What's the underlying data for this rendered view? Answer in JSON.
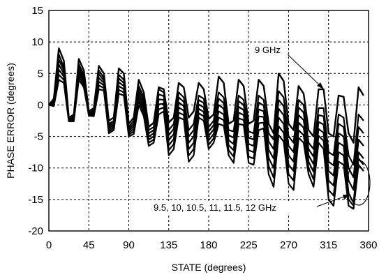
{
  "chart_data": {
    "type": "line",
    "title": "",
    "xlabel": "STATE (degrees)",
    "ylabel": "PHASE ERROR  (degrees)",
    "xlim": [
      0,
      360
    ],
    "ylim": [
      -20,
      15
    ],
    "xticks": [
      "0",
      "45",
      "90",
      "135",
      "180",
      "225",
      "270",
      "315",
      "360"
    ],
    "yticks": [
      "15",
      "10",
      "5",
      "0",
      "-5",
      "-10",
      "-15",
      "-20"
    ],
    "grid": true,
    "x": [
      0,
      5.6,
      11.25,
      16.9,
      22.5,
      28.1,
      33.75,
      39.4,
      45,
      50.6,
      56.25,
      61.9,
      67.5,
      73.1,
      78.75,
      84.4,
      90,
      95.6,
      101.25,
      106.9,
      112.5,
      118.1,
      123.75,
      129.4,
      135,
      140.6,
      146.25,
      151.9,
      157.5,
      163.1,
      168.75,
      174.4,
      180,
      185.6,
      191.25,
      196.9,
      202.5,
      208.1,
      213.75,
      219.4,
      225,
      230.6,
      236.25,
      241.9,
      247.5,
      253.1,
      258.75,
      264.4,
      270,
      275.6,
      281.25,
      286.9,
      292.5,
      298.1,
      303.75,
      309.4,
      315,
      320.6,
      326.25,
      331.9,
      337.5,
      343.1,
      348.75,
      354.4
    ],
    "series": [
      {
        "name": "9 GHz",
        "values": [
          0,
          1,
          9,
          7,
          -2,
          -1.8,
          7.3,
          5.5,
          -1,
          -0.5,
          6.2,
          5,
          -2.5,
          -2,
          5.8,
          5,
          -3,
          -2,
          4,
          2,
          -3.5,
          -2.8,
          2.8,
          2.5,
          -2.8,
          -2,
          3.5,
          2.8,
          -2,
          -1,
          3.5,
          2.5,
          -2.2,
          -1.5,
          4.5,
          3.5,
          -3,
          -2.5,
          4,
          3,
          -3,
          -2.5,
          4,
          3,
          -3,
          -4.5,
          5,
          3.8,
          -3,
          -4,
          3,
          1.8,
          -4,
          -5,
          2.5,
          2.5,
          -4.5,
          -5,
          1.5,
          1.3,
          -4.5,
          -6,
          2.8,
          1.5
        ]
      },
      {
        "name": "",
        "values": [
          0,
          0.8,
          8,
          6,
          -2,
          -1.5,
          6.5,
          4.8,
          -1.2,
          -0.8,
          5.5,
          4.3,
          -3,
          -2.5,
          4.8,
          4,
          -3.5,
          -2.5,
          3,
          1.2,
          -4,
          -3.5,
          2.5,
          2,
          -4,
          -3,
          2,
          1.2,
          -4,
          -3,
          1.5,
          1,
          -3.5,
          -2.5,
          2,
          1.2,
          -4,
          -4.2,
          1.5,
          0.8,
          -4.2,
          -4.5,
          1.5,
          0.8,
          -4.5,
          -5.5,
          2.2,
          1.2,
          -5,
          -6,
          0.8,
          0,
          -6,
          -7,
          -0.5,
          -0.5,
          -7.5,
          -8,
          -1.5,
          -2,
          -8,
          -9.5,
          -1.5,
          -2.5
        ]
      },
      {
        "name": "",
        "values": [
          0,
          0.6,
          7.2,
          5.5,
          -2.2,
          -1.8,
          6,
          4.4,
          -1.3,
          -1,
          4.9,
          3.9,
          -3.3,
          -2.8,
          4.2,
          3.5,
          -3.8,
          -3,
          2.4,
          0.6,
          -4.5,
          -4,
          1.7,
          1.4,
          -4.8,
          -3.8,
          1.2,
          0.5,
          -5,
          -4,
          0.8,
          0.3,
          -4.2,
          -3.2,
          1,
          0.3,
          -4.8,
          -5.2,
          0.6,
          0,
          -5.2,
          -5.5,
          0.4,
          -0.1,
          -5.8,
          -7,
          0.8,
          -0.2,
          -6.5,
          -7.5,
          -0.4,
          -1.2,
          -7,
          -8.2,
          -1.6,
          -1.8,
          -9,
          -9.6,
          -3,
          -3.5,
          -10,
          -11.5,
          -3.5,
          -4.5
        ]
      },
      {
        "name": "",
        "values": [
          0,
          0.4,
          6.4,
          5,
          -2.3,
          -2,
          5.5,
          4,
          -1.4,
          -1.2,
          4.3,
          3.5,
          -3.6,
          -3.1,
          3.6,
          3,
          -4.1,
          -3.4,
          1.8,
          0,
          -5,
          -4.5,
          0.9,
          0.8,
          -5.6,
          -4.6,
          0.4,
          -0.2,
          -6,
          -5,
          0.1,
          -0.4,
          -4.9,
          -3.9,
          0,
          -0.6,
          -5.6,
          -6.2,
          -0.3,
          -0.8,
          -6.2,
          -6.5,
          -0.7,
          -1,
          -7.1,
          -8.5,
          -0.6,
          -1.6,
          -8,
          -9,
          -1.6,
          -2.4,
          -8,
          -9.4,
          -2.7,
          -3.1,
          -10.5,
          -11.2,
          -4.5,
          -5,
          -12,
          -13.5,
          -5.5,
          -6.5
        ]
      },
      {
        "name": "",
        "values": [
          0,
          0.2,
          5.6,
          4.5,
          -2.4,
          -2.2,
          5,
          3.6,
          -1.5,
          -1.4,
          3.7,
          3.1,
          -3.9,
          -3.4,
          3,
          2.5,
          -4.4,
          -3.8,
          1.2,
          -0.6,
          -5.5,
          -5,
          0.1,
          0.2,
          -6.4,
          -5.4,
          -0.4,
          -0.9,
          -7,
          -6,
          -0.6,
          -1.1,
          -5.6,
          -4.6,
          -1,
          -1.5,
          -6.4,
          -7.2,
          -1.2,
          -1.6,
          -7.2,
          -7.5,
          -1.8,
          -1.9,
          -8.4,
          -10,
          -2,
          -3,
          -9.5,
          -10.5,
          -2.8,
          -3.6,
          -9,
          -10.6,
          -3.8,
          -4.4,
          -12,
          -12.8,
          -6,
          -6.5,
          -14,
          -15.5,
          -7.5,
          -8.5
        ]
      },
      {
        "name": "",
        "values": [
          0,
          0,
          4.8,
          4,
          -2.5,
          -2.4,
          4.5,
          3.2,
          -1.6,
          -1.6,
          3.1,
          2.7,
          -4.2,
          -3.7,
          2.4,
          2,
          -4.7,
          -4.2,
          0.6,
          -1.2,
          -6,
          -5.5,
          -0.7,
          -0.4,
          -7.2,
          -6.2,
          -1.2,
          -1.6,
          -8,
          -7,
          -1.3,
          -1.8,
          -6.3,
          -5.3,
          -2,
          -2.4,
          -7.2,
          -8.2,
          -2.1,
          -2.4,
          -8.2,
          -8.5,
          -2.9,
          -2.8,
          -9.7,
          -11.5,
          -3.4,
          -4.4,
          -11,
          -12,
          -4,
          -4.8,
          -10,
          -11.8,
          -4.9,
          -5.7,
          -13.5,
          -14.4,
          -7.5,
          -8,
          -15,
          -16,
          -8.5,
          -9.5
        ]
      },
      {
        "name": "",
        "values": [
          0,
          -0.2,
          4,
          3.5,
          -2.6,
          -2.6,
          4,
          2.8,
          -1.7,
          -1.8,
          2.5,
          2.3,
          -4.5,
          -4,
          1.8,
          1.5,
          -5,
          -4.6,
          0,
          -1.8,
          -6.5,
          -6,
          -1.5,
          -1,
          -8,
          -7,
          -2,
          -2.3,
          -9,
          -8,
          -2,
          -2.5,
          -7,
          -6,
          -3,
          -3.3,
          -8,
          -9.2,
          -3,
          -3.2,
          -9.2,
          -9.5,
          -4,
          -3.7,
          -11,
          -13,
          -4.8,
          -5.8,
          -12.5,
          -13.5,
          -5.2,
          -6,
          -11,
          -13,
          -6,
          -7,
          -15,
          -16,
          -9,
          -9.5,
          -16,
          -16.5,
          -9.5,
          -10.5
        ]
      }
    ],
    "annotations": [
      {
        "text": "9 GHz"
      },
      {
        "text": "9.5, 10, 10.5, 11, 11.5, 12  GHz"
      }
    ]
  }
}
